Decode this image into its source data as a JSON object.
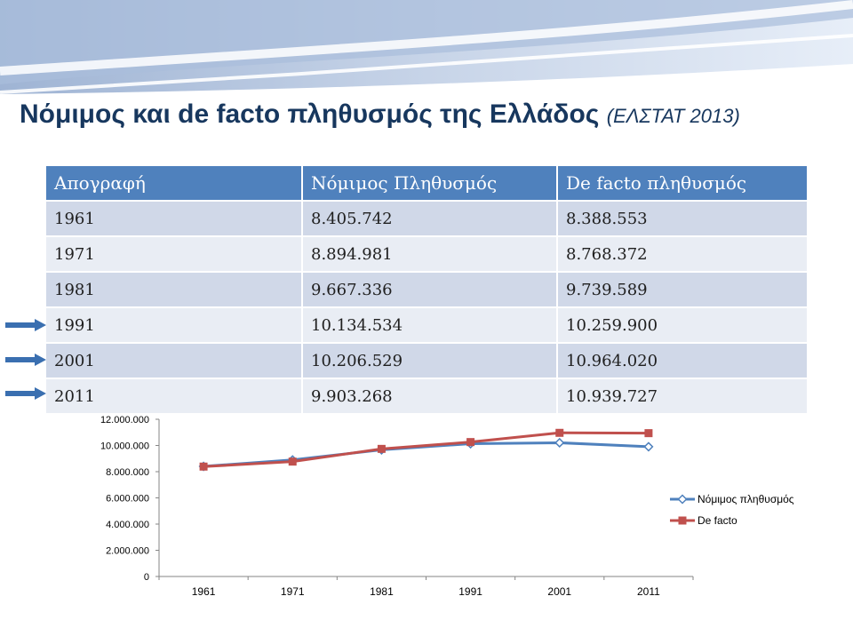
{
  "slide": {
    "title": "Νόμιμος και de facto πληθυσμός της Ελλάδος",
    "source": "(ΕΛΣΤΑΤ 2013)"
  },
  "table": {
    "headers": [
      "Απογραφή",
      "Νόμιμος Πληθυσμός",
      "De facto πληθυσμός"
    ],
    "rows": [
      [
        "1961",
        "8.405.742",
        "8.388.553"
      ],
      [
        "1971",
        "8.894.981",
        "8.768.372"
      ],
      [
        "1981",
        "9.667.336",
        "9.739.589"
      ],
      [
        "1991",
        "10.134.534",
        "10.259.900"
      ],
      [
        "2001",
        "10.206.529",
        "10.964.020"
      ],
      [
        "2011",
        "9.903.268",
        "10.939.727"
      ]
    ],
    "highlighted_rows": [
      "1991",
      "2001",
      "2011"
    ]
  },
  "colors": {
    "header_bg": "#4f81bd",
    "row_odd": "#d0d8e8",
    "row_even": "#e9edf4",
    "title": "#17375e",
    "series_legal": "#4f81bd",
    "series_defacto": "#c0504d",
    "arrow": "#3a6fb0"
  },
  "chart_data": {
    "type": "line",
    "categories": [
      "1961",
      "1971",
      "1981",
      "1991",
      "2001",
      "2011"
    ],
    "series": [
      {
        "name": "Νόμιμος πληθυσμός",
        "marker": "diamond",
        "color": "#4f81bd",
        "values": [
          8405742,
          8894981,
          9667336,
          10134534,
          10206529,
          9903268
        ]
      },
      {
        "name": "De facto",
        "marker": "square",
        "color": "#c0504d",
        "values": [
          8388553,
          8768372,
          9739589,
          10259900,
          10964020,
          10939727
        ]
      }
    ],
    "yticks": [
      {
        "value": 0,
        "label": "0"
      },
      {
        "value": 2000000,
        "label": "2.000.000"
      },
      {
        "value": 4000000,
        "label": "4.000.000"
      },
      {
        "value": 6000000,
        "label": "6.000.000"
      },
      {
        "value": 8000000,
        "label": "8.000.000"
      },
      {
        "value": 10000000,
        "label": "10.000.000"
      },
      {
        "value": 12000000,
        "label": "12.000.000"
      }
    ],
    "ylim": [
      0,
      12000000
    ],
    "grid": false,
    "legend": "right"
  }
}
